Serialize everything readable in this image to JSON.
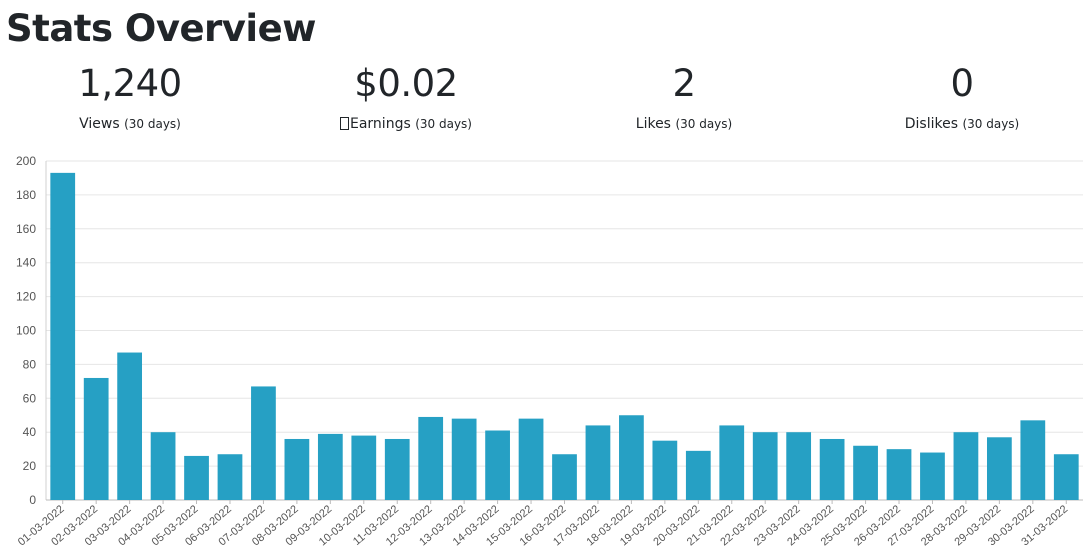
{
  "page": {
    "title": "Stats Overview"
  },
  "stats": [
    {
      "value": "1,240",
      "label": "Views",
      "note": "(30 days)"
    },
    {
      "value": "$0.02",
      "label": "Earnings",
      "note": "(30 days)",
      "icon": "earnings-icon"
    },
    {
      "value": "2",
      "label": "Likes",
      "note": "(30 days)"
    },
    {
      "value": "0",
      "label": "Dislikes",
      "note": "(30 days)"
    }
  ],
  "chart_data": {
    "type": "bar",
    "color": "#26a0c4",
    "categories": [
      "01-03-2022",
      "02-03-2022",
      "03-03-2022",
      "04-03-2022",
      "05-03-2022",
      "06-03-2022",
      "07-03-2022",
      "08-03-2022",
      "09-03-2022",
      "10-03-2022",
      "11-03-2022",
      "12-03-2022",
      "13-03-2022",
      "14-03-2022",
      "15-03-2022",
      "16-03-2022",
      "17-03-2022",
      "18-03-2022",
      "19-03-2022",
      "20-03-2022",
      "21-03-2022",
      "22-03-2022",
      "23-03-2022",
      "24-03-2022",
      "25-03-2022",
      "26-03-2022",
      "27-03-2022",
      "28-03-2022",
      "29-03-2022",
      "30-03-2022",
      "31-03-2022"
    ],
    "values": [
      193,
      72,
      87,
      40,
      26,
      27,
      67,
      36,
      39,
      38,
      36,
      49,
      48,
      41,
      48,
      27,
      44,
      50,
      35,
      29,
      44,
      40,
      40,
      36,
      32,
      30,
      28,
      40,
      37,
      47,
      27
    ],
    "ylim": [
      0,
      200
    ],
    "yticks": [
      0,
      20,
      40,
      60,
      80,
      100,
      120,
      140,
      160,
      180,
      200
    ],
    "grid": true,
    "legend": "none"
  }
}
